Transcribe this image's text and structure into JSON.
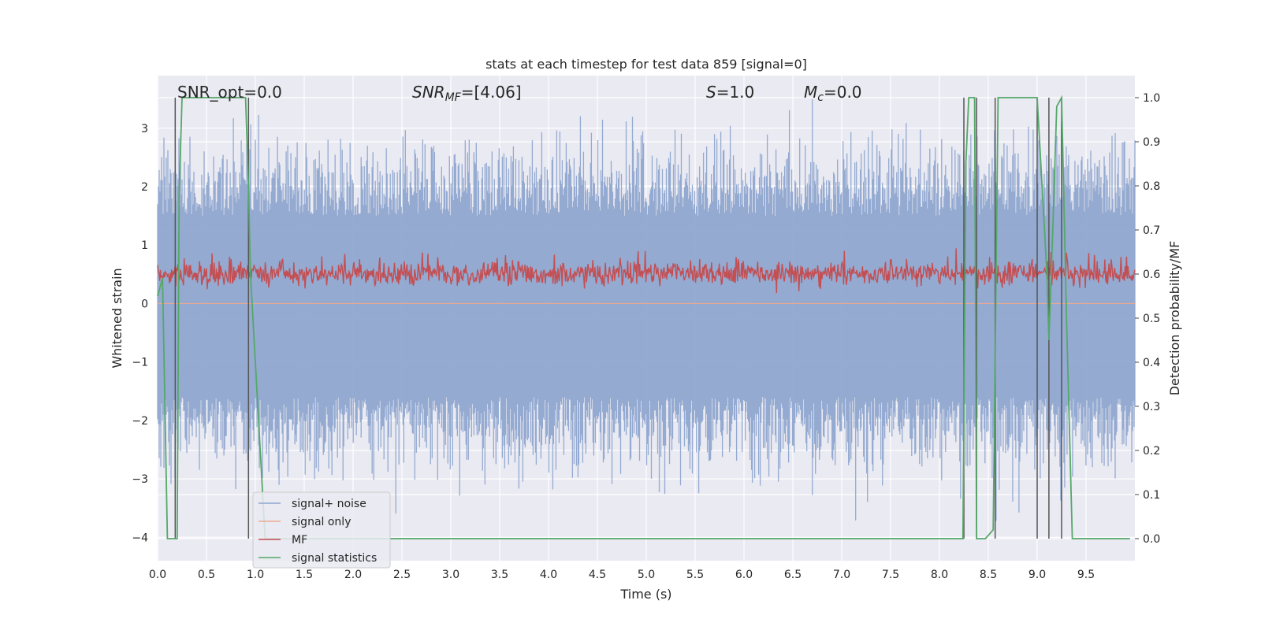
{
  "chart_data": {
    "type": "line",
    "title": "stats at each timestep for test data 859 [signal=0]",
    "xlabel": "Time (s)",
    "ylabel_left": "Whitened strain",
    "ylabel_right": "Detection probability/MF",
    "xlim": [
      0.0,
      10.0
    ],
    "ylim_left": [
      -4.4,
      3.9
    ],
    "ylim_right": [
      -0.05,
      1.05
    ],
    "x_ticks": [
      0.0,
      0.5,
      1.0,
      1.5,
      2.0,
      2.5,
      3.0,
      3.5,
      4.0,
      4.5,
      5.0,
      5.5,
      6.0,
      6.5,
      7.0,
      7.5,
      8.0,
      8.5,
      9.0,
      9.5
    ],
    "x_tick_labels": [
      "0.0",
      "0.5",
      "1.0",
      "1.5",
      "2.0",
      "2.5",
      "3.0",
      "3.5",
      "4.0",
      "4.5",
      "5.0",
      "5.5",
      "6.0",
      "6.5",
      "7.0",
      "7.5",
      "8.0",
      "8.5",
      "9.0",
      "9.5"
    ],
    "y_ticks_left": [
      -4,
      -3,
      -2,
      -1,
      0,
      1,
      2,
      3
    ],
    "y_tick_labels_left": [
      "−4",
      "−3",
      "−2",
      "−1",
      "0",
      "1",
      "2",
      "3"
    ],
    "y_ticks_right": [
      0.0,
      0.1,
      0.2,
      0.3,
      0.4,
      0.5,
      0.6,
      0.7,
      0.8,
      0.9,
      1.0
    ],
    "y_tick_labels_right": [
      "0.0",
      "0.1",
      "0.2",
      "0.3",
      "0.4",
      "0.5",
      "0.6",
      "0.7",
      "0.8",
      "0.9",
      "1.0"
    ],
    "annotations": {
      "snr_opt": "SNR_opt=0.0",
      "snr_mf_main": "SNR",
      "snr_mf_sub": "MF",
      "snr_mf_value": "=[4.06]",
      "s_main": "S",
      "s_value": "=1.0",
      "mc_main": "M",
      "mc_sub": "c",
      "mc_value": "=0.0"
    },
    "legend": {
      "placement": "lower-left",
      "entries": [
        {
          "label": "signal+ noise",
          "color": "#8fa6cf"
        },
        {
          "label": "signal only",
          "color": "#eca98e"
        },
        {
          "label": "MF",
          "color": "#c44e52"
        },
        {
          "label": "signal statistics",
          "color": "#55a868"
        }
      ]
    },
    "series": [
      {
        "name": "signal+ noise",
        "axis": "left",
        "color": "#8fa6cf",
        "style": "dense noise, approx range -4.0 to 3.5"
      },
      {
        "name": "signal only",
        "axis": "left",
        "color": "#eca98e",
        "x": [
          0.0,
          10.0
        ],
        "y": [
          0.0,
          0.0
        ]
      },
      {
        "name": "MF",
        "axis": "right",
        "color": "#c44e52",
        "style": "dense noise, approx range 0.54 to 0.66"
      },
      {
        "name": "signal statistics",
        "axis": "right",
        "color": "#55a868",
        "x": [
          0.0,
          0.05,
          0.1,
          0.15,
          0.18,
          0.2,
          0.22,
          0.25,
          0.3,
          0.5,
          0.7,
          0.9,
          0.93,
          0.95,
          1.0,
          1.05,
          1.1,
          1.2,
          8.24,
          8.27,
          8.3,
          8.36,
          8.38,
          8.42,
          8.47,
          8.55,
          8.6,
          8.65,
          8.7,
          8.75,
          9.0,
          9.05,
          9.1,
          9.12,
          9.16,
          9.2,
          9.25,
          9.3,
          9.36,
          9.4,
          9.5,
          9.95
        ],
        "y": [
          0.55,
          0.59,
          0.0,
          0.0,
          0.0,
          0.0,
          0.78,
          1.0,
          1.0,
          1.0,
          1.0,
          1.0,
          0.8,
          0.6,
          0.4,
          0.2,
          0.0,
          0.0,
          0.0,
          0.85,
          1.0,
          1.0,
          0.0,
          0.0,
          0.0,
          0.02,
          1.0,
          1.0,
          1.0,
          1.0,
          1.0,
          0.8,
          0.6,
          0.45,
          0.7,
          0.98,
          1.0,
          0.5,
          0.0,
          0.0,
          0.0,
          0.0
        ]
      }
    ],
    "vertical_lines_x": [
      0.18,
      0.93,
      8.25,
      8.38,
      8.57,
      9.0,
      9.12,
      9.25
    ]
  }
}
